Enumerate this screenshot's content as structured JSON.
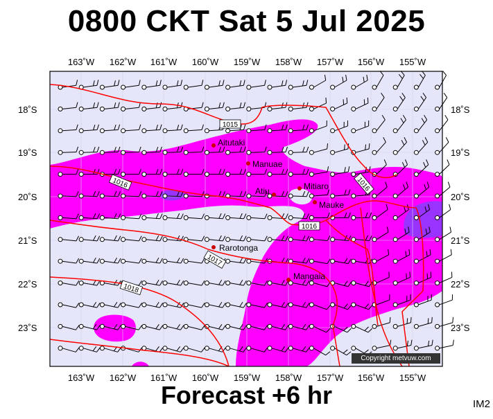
{
  "title": "0800 CKT Sat 5 Jul 2025",
  "footer": "Forecast +6 hr",
  "code": "IM2",
  "copyright": "Copyright metvuw.com",
  "colors": {
    "background_light": "#e6e6fa",
    "precip_magenta": "#ff00ff",
    "precip_purple": "#9933ff",
    "isobar_red": "#ff0000",
    "land_red": "#cc0000"
  },
  "lon_labels": [
    "163˚W",
    "162˚W",
    "161˚W",
    "160˚W",
    "159˚W",
    "158˚W",
    "157˚W",
    "156˚W",
    "155˚W"
  ],
  "lat_labels": [
    "18˚S",
    "19˚S",
    "20˚S",
    "21˚S",
    "22˚S",
    "23˚S"
  ],
  "places": [
    {
      "name": "Aitutaki"
    },
    {
      "name": "Manuae"
    },
    {
      "name": "Atiu"
    },
    {
      "name": "Mitiaro"
    },
    {
      "name": "Mauke"
    },
    {
      "name": "Rarotonga"
    },
    {
      "name": "Mangaia"
    }
  ],
  "isobars": [
    "1015",
    "1016",
    "1016",
    "1016",
    "1017",
    "1018"
  ]
}
